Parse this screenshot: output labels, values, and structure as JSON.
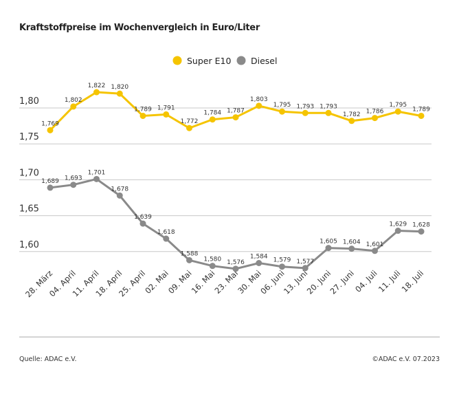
{
  "chart_data": {
    "type": "line",
    "title": "Kraftstoffpreise im Wochenvergleich in Euro/Liter",
    "categories": [
      "28. März",
      "04. April",
      "11. April",
      "18. April",
      "25. April",
      "02. Mai",
      "09. Mai",
      "16. Mai",
      "23. Mai",
      "30. Mai",
      "06. Juni",
      "13. Juni",
      "20. Juni",
      "27. Juni",
      "04. Juli",
      "11. Juli",
      "18. Juli"
    ],
    "series": [
      {
        "name": "Super E10",
        "color": "#f5c400",
        "values": [
          1.769,
          1.802,
          1.822,
          1.82,
          1.789,
          1.791,
          1.772,
          1.784,
          1.787,
          1.803,
          1.795,
          1.793,
          1.793,
          1.782,
          1.786,
          1.795,
          1.789
        ]
      },
      {
        "name": "Diesel",
        "color": "#8a8a8a",
        "values": [
          1.689,
          1.693,
          1.701,
          1.678,
          1.639,
          1.618,
          1.588,
          1.58,
          1.576,
          1.584,
          1.579,
          1.577,
          1.605,
          1.604,
          1.601,
          1.629,
          1.628
        ]
      }
    ],
    "yticks": [
      1.6,
      1.65,
      1.7,
      1.75,
      1.8
    ],
    "ytick_labels": [
      "1,60",
      "1,65",
      "1,70",
      "1,75",
      "1,80"
    ],
    "ylim": [
      1.55,
      1.84
    ],
    "grid": true,
    "legend_position": "top-center",
    "decimal_separator": ","
  },
  "footer": {
    "source": "Quelle: ADAC e.V.",
    "copyright": "©ADAC e.V. 07.2023"
  }
}
